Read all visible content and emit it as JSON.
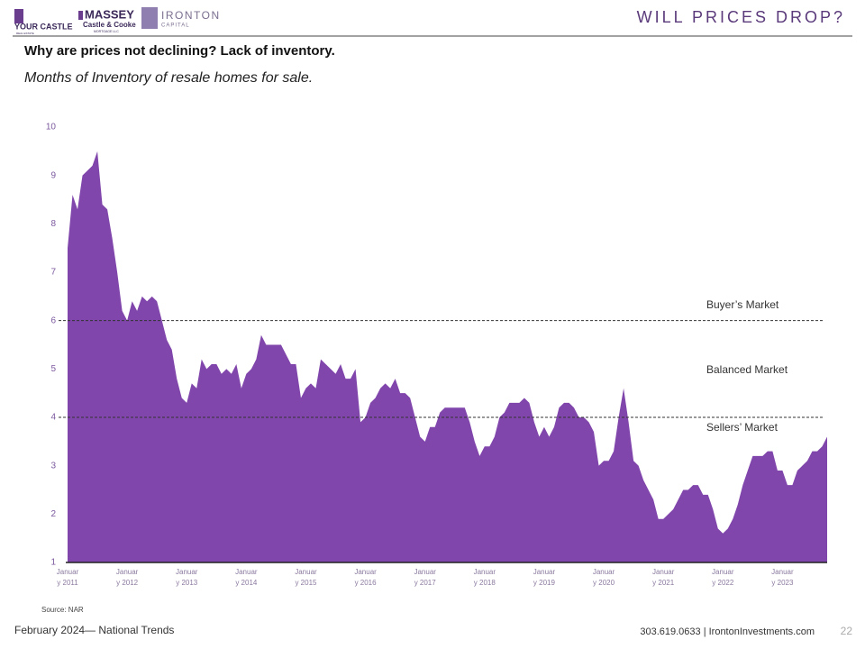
{
  "header": {
    "logos": [
      "YOUR CASTLE",
      "REAL ESTATE",
      "MASSEY",
      "Castle & Cooke",
      "MORTGAGE LLC",
      "IRONTON",
      "CAPITAL"
    ],
    "slide_title": "WILL PRICES DROP?"
  },
  "chart_data": {
    "type": "area",
    "title": "Why are prices not declining?  Lack of inventory.",
    "subtitle": "Months of Inventory of resale homes for sale.",
    "categories": [
      "January 2011",
      null,
      null,
      null,
      null,
      null,
      null,
      null,
      null,
      null,
      null,
      null,
      "January 2012",
      null,
      null,
      null,
      null,
      null,
      null,
      null,
      null,
      null,
      null,
      null,
      "January 2013",
      null,
      null,
      null,
      null,
      null,
      null,
      null,
      null,
      null,
      null,
      null,
      "January 2014",
      null,
      null,
      null,
      null,
      null,
      null,
      null,
      null,
      null,
      null,
      null,
      "January 2015",
      null,
      null,
      null,
      null,
      null,
      null,
      null,
      null,
      null,
      null,
      null,
      "January 2016",
      null,
      null,
      null,
      null,
      null,
      null,
      null,
      null,
      null,
      null,
      null,
      "January 2017",
      null,
      null,
      null,
      null,
      null,
      null,
      null,
      null,
      null,
      null,
      null,
      "January 2018",
      null,
      null,
      null,
      null,
      null,
      null,
      null,
      null,
      null,
      null,
      null,
      "January 2019",
      null,
      null,
      null,
      null,
      null,
      null,
      null,
      null,
      null,
      null,
      null,
      "January 2020",
      null,
      null,
      null,
      null,
      null,
      null,
      null,
      null,
      null,
      null,
      null,
      "January 2021",
      null,
      null,
      null,
      null,
      null,
      null,
      null,
      null,
      null,
      null,
      null,
      "January 2022",
      null,
      null,
      null,
      null,
      null,
      null,
      null,
      null,
      null,
      null,
      null,
      "January 2023",
      null,
      null,
      null,
      null,
      null,
      null,
      null,
      null,
      null
    ],
    "values": [
      7.5,
      8.6,
      8.3,
      9.0,
      9.1,
      9.2,
      9.5,
      8.4,
      8.3,
      7.7,
      7.0,
      6.2,
      6.0,
      6.4,
      6.2,
      6.5,
      6.4,
      6.5,
      6.4,
      6.0,
      5.6,
      5.4,
      4.8,
      4.4,
      4.3,
      4.7,
      4.6,
      5.2,
      5.0,
      5.1,
      5.1,
      4.9,
      5.0,
      4.9,
      5.1,
      4.6,
      4.9,
      5.0,
      5.2,
      5.7,
      5.5,
      5.5,
      5.5,
      5.5,
      5.3,
      5.1,
      5.1,
      4.4,
      4.6,
      4.7,
      4.6,
      5.2,
      5.1,
      5.0,
      4.9,
      5.1,
      4.8,
      4.8,
      5.0,
      3.9,
      4.0,
      4.3,
      4.4,
      4.6,
      4.7,
      4.6,
      4.8,
      4.5,
      4.5,
      4.4,
      4.0,
      3.6,
      3.5,
      3.8,
      3.8,
      4.1,
      4.2,
      4.2,
      4.2,
      4.2,
      4.2,
      3.9,
      3.5,
      3.2,
      3.4,
      3.4,
      3.6,
      4.0,
      4.1,
      4.3,
      4.3,
      4.3,
      4.4,
      4.3,
      3.9,
      3.6,
      3.8,
      3.6,
      3.8,
      4.2,
      4.3,
      4.3,
      4.2,
      4.0,
      4.0,
      3.9,
      3.7,
      3.0,
      3.1,
      3.1,
      3.3,
      4.0,
      4.6,
      3.9,
      3.1,
      3.0,
      2.7,
      2.5,
      2.3,
      1.9,
      1.9,
      2.0,
      2.1,
      2.3,
      2.5,
      2.5,
      2.6,
      2.6,
      2.4,
      2.4,
      2.1,
      1.7,
      1.6,
      1.7,
      1.9,
      2.2,
      2.6,
      2.9,
      3.2,
      3.2,
      3.2,
      3.3,
      3.3,
      2.9,
      2.9,
      2.6,
      2.6,
      2.9,
      3.0,
      3.1,
      3.3,
      3.3,
      3.4,
      3.6
    ],
    "color": "#8046ab",
    "ylim": [
      1,
      10
    ],
    "yticks": [
      1,
      2,
      3,
      4,
      5,
      6,
      7,
      8,
      9,
      10
    ],
    "grid": false,
    "reference_lines": [
      6,
      4
    ],
    "annotations": [
      "Buyer’s Market",
      "Balanced Market",
      "Sellers’ Market"
    ],
    "source": "Source: NAR"
  },
  "footer": {
    "left": "February 2024— National Trends",
    "contact": "303.619.0633 | IrontonInvestments.com",
    "page": "22"
  }
}
